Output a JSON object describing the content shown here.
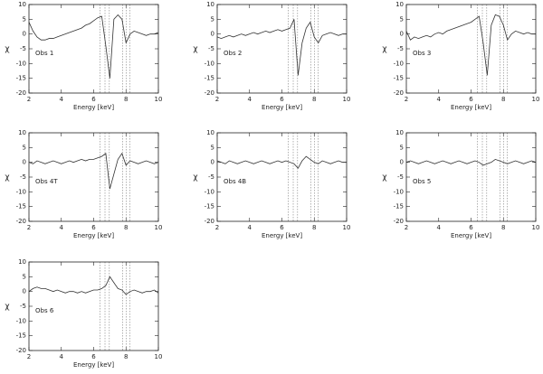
{
  "chart_data": [
    {
      "type": "line",
      "annotation": "Obs 1",
      "xlabel": "Energy [keV]",
      "ylabel": "χ",
      "color": "#333333",
      "x": [
        2,
        2.25,
        2.5,
        2.75,
        3,
        3.25,
        3.5,
        3.75,
        4,
        4.25,
        4.5,
        4.75,
        5,
        5.25,
        5.5,
        5.75,
        6,
        6.25,
        6.5,
        6.75,
        7,
        7.25,
        7.5,
        7.75,
        8,
        8.25,
        8.5,
        8.75,
        9,
        9.25,
        9.5,
        9.75,
        10
      ],
      "values": [
        4,
        1,
        -1,
        -2,
        -2,
        -1.5,
        -1.5,
        -1,
        -0.5,
        0,
        0.5,
        1,
        1.5,
        2,
        3,
        3.5,
        4.5,
        5.5,
        6,
        -4,
        -15,
        5,
        6.5,
        5,
        -3,
        0,
        1,
        0.5,
        0,
        -0.5,
        0,
        0,
        0.5
      ],
      "xlim": [
        2,
        10
      ],
      "ylim": [
        -20,
        10
      ],
      "xticks": [
        2,
        4,
        6,
        8,
        10
      ],
      "yticks": [
        -20,
        -15,
        -10,
        -5,
        0,
        5,
        10
      ],
      "vlines": [
        6.4,
        6.7,
        6.97,
        7.8,
        8.0,
        8.25
      ]
    },
    {
      "type": "line",
      "annotation": "Obs 2",
      "xlabel": "Energy [keV]",
      "ylabel": "χ",
      "color": "#333333",
      "x": [
        2,
        2.25,
        2.5,
        2.75,
        3,
        3.25,
        3.5,
        3.75,
        4,
        4.25,
        4.5,
        4.75,
        5,
        5.25,
        5.5,
        5.75,
        6,
        6.25,
        6.5,
        6.75,
        7,
        7.25,
        7.5,
        7.75,
        8,
        8.25,
        8.5,
        8.75,
        9,
        9.25,
        9.5,
        9.75,
        10
      ],
      "values": [
        -1,
        -1.5,
        -1,
        -0.5,
        -1,
        -0.5,
        0,
        -0.5,
        0,
        0.5,
        0,
        0.5,
        1,
        0.5,
        1,
        1.5,
        1,
        1.5,
        2,
        5,
        -14,
        -3,
        2,
        4,
        -1,
        -3,
        -0.5,
        0,
        0.5,
        0,
        -0.5,
        0,
        0
      ],
      "xlim": [
        2,
        10
      ],
      "ylim": [
        -20,
        10
      ],
      "xticks": [
        2,
        4,
        6,
        8,
        10
      ],
      "yticks": [
        -20,
        -15,
        -10,
        -5,
        0,
        5,
        10
      ],
      "vlines": [
        6.4,
        6.7,
        6.97,
        7.8,
        8.0,
        8.25
      ]
    },
    {
      "type": "line",
      "annotation": "Obs 3",
      "xlabel": "Energy [keV]",
      "ylabel": "χ",
      "color": "#333333",
      "x": [
        2,
        2.25,
        2.5,
        2.75,
        3,
        3.25,
        3.5,
        3.75,
        4,
        4.25,
        4.5,
        4.75,
        5,
        5.25,
        5.5,
        5.75,
        6,
        6.25,
        6.5,
        6.75,
        7,
        7.25,
        7.5,
        7.75,
        8,
        8.25,
        8.5,
        8.75,
        9,
        9.25,
        9.5,
        9.75,
        10
      ],
      "values": [
        1,
        -2,
        -1,
        -1.5,
        -1,
        -0.5,
        -1,
        0,
        0.5,
        0,
        1,
        1.5,
        2,
        2.5,
        3,
        3.5,
        4,
        5,
        6,
        -3,
        -14,
        3,
        6.5,
        6,
        3,
        -2,
        0,
        1,
        0.5,
        0,
        0.5,
        0,
        0
      ],
      "xlim": [
        2,
        10
      ],
      "ylim": [
        -20,
        10
      ],
      "xticks": [
        2,
        4,
        6,
        8,
        10
      ],
      "yticks": [
        -20,
        -15,
        -10,
        -5,
        0,
        5,
        10
      ],
      "vlines": [
        6.4,
        6.7,
        6.97,
        7.8,
        8.0,
        8.25
      ]
    },
    {
      "type": "line",
      "annotation": "Obs 4T",
      "xlabel": "Energy [keV]",
      "ylabel": "χ",
      "color": "#333333",
      "x": [
        2,
        2.25,
        2.5,
        2.75,
        3,
        3.25,
        3.5,
        3.75,
        4,
        4.25,
        4.5,
        4.75,
        5,
        5.25,
        5.5,
        5.75,
        6,
        6.25,
        6.5,
        6.75,
        7,
        7.25,
        7.5,
        7.75,
        8,
        8.25,
        8.5,
        8.75,
        9,
        9.25,
        9.5,
        9.75,
        10
      ],
      "values": [
        0,
        -0.5,
        0.5,
        0,
        -0.5,
        0,
        0.5,
        0,
        -0.5,
        0,
        0.5,
        0,
        0.5,
        1,
        0.5,
        1,
        1,
        1.5,
        2,
        3,
        -9,
        -4,
        1,
        3,
        -1,
        0.5,
        0,
        -0.5,
        0,
        0.5,
        0,
        -0.5,
        0
      ],
      "xlim": [
        2,
        10
      ],
      "ylim": [
        -20,
        10
      ],
      "xticks": [
        2,
        4,
        6,
        8,
        10
      ],
      "yticks": [
        -20,
        -15,
        -10,
        -5,
        0,
        5,
        10
      ],
      "vlines": [
        6.4,
        6.7,
        6.97,
        7.8,
        8.0,
        8.25
      ]
    },
    {
      "type": "line",
      "annotation": "Obs 4B",
      "xlabel": "Energy [keV]",
      "ylabel": "χ",
      "color": "#333333",
      "x": [
        2,
        2.25,
        2.5,
        2.75,
        3,
        3.25,
        3.5,
        3.75,
        4,
        4.25,
        4.5,
        4.75,
        5,
        5.25,
        5.5,
        5.75,
        6,
        6.25,
        6.5,
        6.75,
        7,
        7.25,
        7.5,
        7.75,
        8,
        8.25,
        8.5,
        8.75,
        9,
        9.25,
        9.5,
        9.75,
        10
      ],
      "values": [
        0.5,
        0,
        -0.5,
        0.5,
        0,
        -0.5,
        0,
        0.5,
        0,
        -0.5,
        0,
        0.5,
        0,
        -0.5,
        0,
        0.5,
        0,
        0.5,
        0,
        -0.5,
        -2,
        0.5,
        2,
        1,
        0,
        -0.5,
        0.5,
        0,
        -0.5,
        0,
        0.5,
        0,
        0
      ],
      "xlim": [
        2,
        10
      ],
      "ylim": [
        -20,
        10
      ],
      "xticks": [
        2,
        4,
        6,
        8,
        10
      ],
      "yticks": [
        -20,
        -15,
        -10,
        -5,
        0,
        5,
        10
      ],
      "vlines": [
        6.4,
        6.7,
        6.97,
        7.8,
        8.0,
        8.25
      ]
    },
    {
      "type": "line",
      "annotation": "Obs 5",
      "xlabel": "Energy [keV]",
      "ylabel": "χ",
      "color": "#333333",
      "x": [
        2,
        2.25,
        2.5,
        2.75,
        3,
        3.25,
        3.5,
        3.75,
        4,
        4.25,
        4.5,
        4.75,
        5,
        5.25,
        5.5,
        5.75,
        6,
        6.25,
        6.5,
        6.75,
        7,
        7.25,
        7.5,
        7.75,
        8,
        8.25,
        8.5,
        8.75,
        9,
        9.25,
        9.5,
        9.75,
        10
      ],
      "values": [
        0,
        0.5,
        0,
        -0.5,
        0,
        0.5,
        0,
        -0.5,
        0,
        0.5,
        0,
        -0.5,
        0,
        0.5,
        0,
        -0.5,
        0,
        0.5,
        0,
        -1,
        -0.5,
        0,
        1,
        0.5,
        0,
        -0.5,
        0,
        0.5,
        0,
        -0.5,
        0,
        0.5,
        0
      ],
      "xlim": [
        2,
        10
      ],
      "ylim": [
        -20,
        10
      ],
      "xticks": [
        2,
        4,
        6,
        8,
        10
      ],
      "yticks": [
        -20,
        -15,
        -10,
        -5,
        0,
        5,
        10
      ],
      "vlines": [
        6.4,
        6.7,
        6.97,
        7.8,
        8.0,
        8.25
      ]
    },
    {
      "type": "line",
      "annotation": "Obs 6",
      "xlabel": "Energy [keV]",
      "ylabel": "χ",
      "color": "#333333",
      "x": [
        2,
        2.25,
        2.5,
        2.75,
        3,
        3.25,
        3.5,
        3.75,
        4,
        4.25,
        4.5,
        4.75,
        5,
        5.25,
        5.5,
        5.75,
        6,
        6.25,
        6.5,
        6.75,
        7,
        7.25,
        7.5,
        7.75,
        8,
        8.25,
        8.5,
        8.75,
        9,
        9.25,
        9.5,
        9.75,
        10
      ],
      "values": [
        0,
        1,
        1.5,
        1,
        1,
        0.5,
        0,
        0.5,
        0,
        -0.5,
        0,
        0,
        -0.5,
        0,
        -0.5,
        0,
        0.5,
        0.5,
        1,
        2,
        5,
        3,
        1,
        0.5,
        -1,
        0,
        0.5,
        0,
        -0.5,
        0,
        0,
        0.5,
        -0.5
      ],
      "xlim": [
        2,
        10
      ],
      "ylim": [
        -20,
        10
      ],
      "xticks": [
        2,
        4,
        6,
        8,
        10
      ],
      "yticks": [
        -20,
        -15,
        -10,
        -5,
        0,
        5,
        10
      ],
      "vlines": [
        6.4,
        6.7,
        6.97,
        7.8,
        8.0,
        8.25
      ]
    }
  ]
}
